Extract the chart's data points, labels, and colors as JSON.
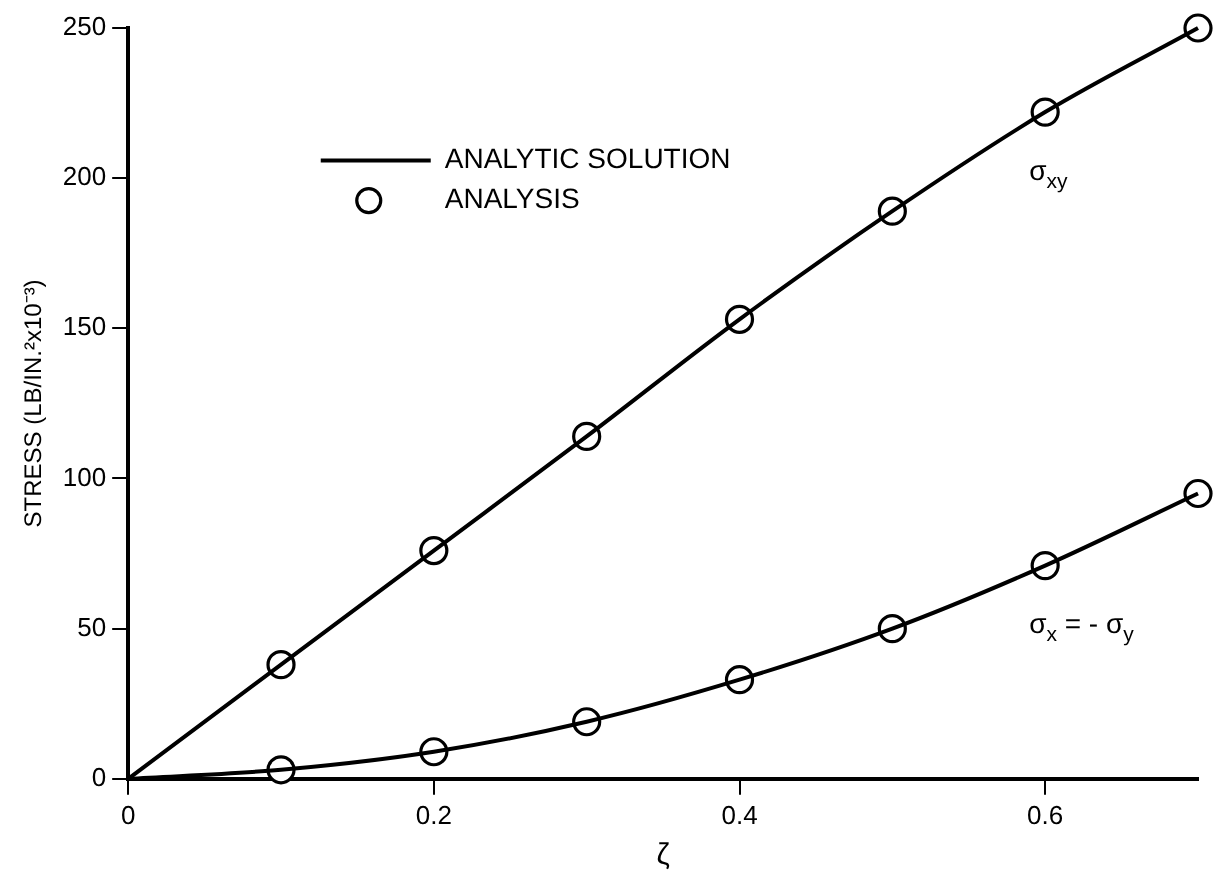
{
  "chart_data": {
    "type": "line",
    "xlabel": "ζ",
    "ylabel": "STRESS (LB/IN.²x10⁻³)",
    "xlim": [
      0,
      0.7
    ],
    "xticks": [
      0,
      0.2,
      0.4,
      0.6
    ],
    "ylim": [
      0,
      250
    ],
    "yticks": [
      0,
      50,
      100,
      150,
      200,
      250
    ],
    "grid": false,
    "legend": "top left",
    "line_style": "solid",
    "series": [
      {
        "name": "ANALYTIC SOLUTION",
        "type": "line",
        "color": "#000000",
        "marker": "none",
        "x": [
          0,
          0.1,
          0.2,
          0.3,
          0.4,
          0.5,
          0.6,
          0.7
        ],
        "values": [
          0,
          38,
          76,
          114,
          153,
          189,
          222,
          250
        ]
      },
      {
        "type": "line",
        "color": "#000000",
        "marker": "none",
        "x": [
          0,
          0.1,
          0.2,
          0.3,
          0.4,
          0.5,
          0.6,
          0.7
        ],
        "values": [
          0,
          3,
          9,
          19,
          33,
          50,
          71,
          95
        ]
      },
      {
        "name": "ANALYSIS",
        "type": "scatter",
        "color": "#000000",
        "marker": "circle",
        "x": [
          0.1,
          0.2,
          0.3,
          0.4,
          0.5,
          0.6,
          0.7
        ],
        "values": [
          38,
          76,
          114,
          153,
          189,
          222,
          250
        ]
      },
      {
        "type": "scatter",
        "color": "#000000",
        "marker": "circle",
        "x": [
          0.1,
          0.2,
          0.3,
          0.4,
          0.5,
          0.6,
          0.7
        ],
        "values": [
          3,
          9,
          19,
          33,
          50,
          71,
          95
        ]
      }
    ],
    "annotations": [
      "σ$_{xy}$",
      "σ$_{x}$ = - σ$_{y}$"
    ]
  }
}
